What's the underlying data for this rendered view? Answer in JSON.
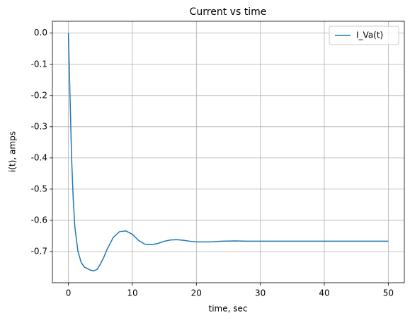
{
  "chart_data": {
    "type": "line",
    "title": "Current vs time",
    "x_label": "time, sec",
    "y_label": "i(t), amps",
    "x": [
      0,
      0.25,
      0.5,
      0.75,
      1,
      1.5,
      2,
      2.5,
      3,
      3.5,
      4,
      4.5,
      5,
      5.5,
      6,
      7,
      8,
      9,
      10,
      11,
      12,
      13,
      14,
      15,
      16,
      17,
      18,
      19,
      20,
      22,
      24,
      26,
      28,
      30,
      35,
      40,
      45,
      50
    ],
    "series": [
      {
        "name": "I_Va(t)",
        "color": "#1f77b4",
        "values": [
          0,
          -0.2,
          -0.4,
          -0.53,
          -0.62,
          -0.7,
          -0.735,
          -0.75,
          -0.755,
          -0.76,
          -0.762,
          -0.757,
          -0.74,
          -0.72,
          -0.695,
          -0.655,
          -0.636,
          -0.634,
          -0.645,
          -0.665,
          -0.677,
          -0.678,
          -0.674,
          -0.667,
          -0.663,
          -0.662,
          -0.664,
          -0.667,
          -0.669,
          -0.669,
          -0.667,
          -0.666,
          -0.667,
          -0.667,
          -0.667,
          -0.667,
          -0.667,
          -0.667
        ]
      }
    ],
    "xlim": [
      -2.5,
      52.5
    ],
    "xticks": [
      0,
      10,
      20,
      30,
      40,
      50
    ],
    "ylim": [
      -0.8,
      0.038
    ],
    "yticks": [
      {
        "value": 0,
        "label": "0.0"
      },
      -0.1,
      -0.2,
      -0.3,
      -0.4,
      -0.5,
      -0.6,
      -0.7
    ],
    "grid": true,
    "legend": "upper-right"
  }
}
